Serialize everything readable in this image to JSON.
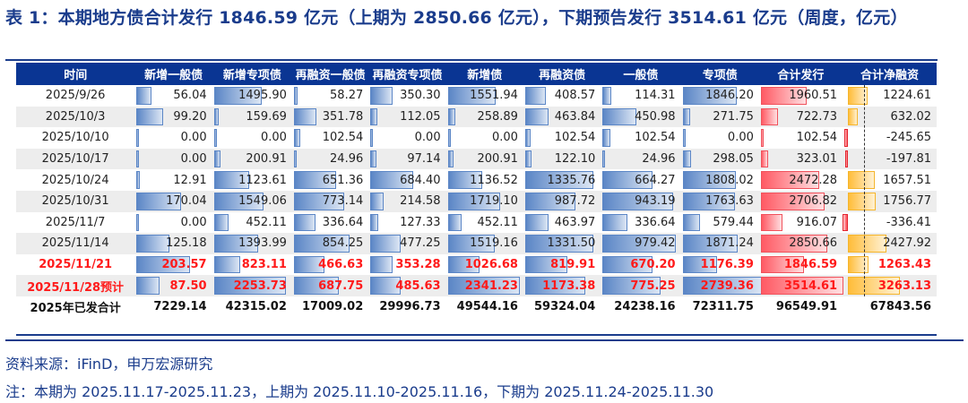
{
  "title": "表 1：本期地方债合计发行 1846.59 亿元（上期为 2850.66 亿元），下期预告发行 3514.61 亿元（周度，亿元）",
  "table": {
    "headers": [
      "时间",
      "新增一般债",
      "新增专项债",
      "再融资一般债",
      "再融资专项债",
      "新增债",
      "再融资债",
      "一般债",
      "专项债",
      "合计发行",
      "合计净融资"
    ],
    "rows": [
      {
        "date": "2025/9/26",
        "values": [
          "56.04",
          "1495.90",
          "58.27",
          "350.30",
          "1551.94",
          "408.57",
          "114.31",
          "1846.20",
          "1960.51",
          "1224.61"
        ],
        "style": "normal"
      },
      {
        "date": "2025/10/3",
        "values": [
          "99.20",
          "159.69",
          "351.78",
          "112.05",
          "258.89",
          "463.84",
          "450.98",
          "271.75",
          "722.73",
          "632.02"
        ],
        "style": "normal"
      },
      {
        "date": "2025/10/10",
        "values": [
          "0.00",
          "0.00",
          "102.54",
          "0.00",
          "0.00",
          "102.54",
          "102.54",
          "0.00",
          "102.54",
          "-245.65"
        ],
        "style": "normal"
      },
      {
        "date": "2025/10/17",
        "values": [
          "0.00",
          "200.91",
          "24.96",
          "97.14",
          "200.91",
          "122.10",
          "24.96",
          "298.05",
          "323.01",
          "-197.81"
        ],
        "style": "normal"
      },
      {
        "date": "2025/10/24",
        "values": [
          "12.91",
          "1123.61",
          "651.36",
          "684.40",
          "1136.52",
          "1335.76",
          "664.27",
          "1808.02",
          "2472.28",
          "1657.51"
        ],
        "style": "normal"
      },
      {
        "date": "2025/10/31",
        "values": [
          "170.04",
          "1549.06",
          "773.14",
          "214.58",
          "1719.10",
          "987.72",
          "943.19",
          "1763.63",
          "2706.82",
          "1756.77"
        ],
        "style": "normal"
      },
      {
        "date": "2025/11/7",
        "values": [
          "0.00",
          "452.11",
          "336.64",
          "127.33",
          "452.11",
          "463.97",
          "336.64",
          "579.44",
          "916.07",
          "-336.41"
        ],
        "style": "normal"
      },
      {
        "date": "2025/11/14",
        "values": [
          "125.18",
          "1393.99",
          "854.25",
          "477.25",
          "1519.16",
          "1331.50",
          "979.42",
          "1871.24",
          "2850.66",
          "2427.92"
        ],
        "style": "normal"
      },
      {
        "date": "2025/11/21",
        "values": [
          "203.57",
          "823.11",
          "466.63",
          "353.28",
          "1026.68",
          "819.91",
          "670.20",
          "1176.39",
          "1846.59",
          "1263.43"
        ],
        "style": "highlight"
      },
      {
        "date": "2025/11/28预计",
        "values": [
          "87.50",
          "2253.73",
          "687.75",
          "485.63",
          "2341.23",
          "1173.38",
          "775.25",
          "2739.36",
          "3514.61",
          "3263.13"
        ],
        "style": "highlight"
      }
    ],
    "total": {
      "label": "2025年已发合计",
      "values": [
        "7229.14",
        "42315.02",
        "17009.02",
        "29996.73",
        "49544.16",
        "59324.04",
        "24238.16",
        "72311.75",
        "96549.91",
        "67843.56"
      ]
    }
  },
  "source": "资料来源：iFinD，申万宏源研究",
  "note": "注：本期为 2025.11.17-2025.11.23，上期为 2025.11.10-2025.11.16，下期为 2025.11.24-2025.11.30",
  "colors": {
    "title": "#1a3c8c",
    "header_bg": "#0a3593",
    "bar_blue": "#5b86c6",
    "bar_red": "#ff5a64",
    "bar_orange": "#ffbd3a",
    "highlight_text": "#ff1a1a"
  }
}
